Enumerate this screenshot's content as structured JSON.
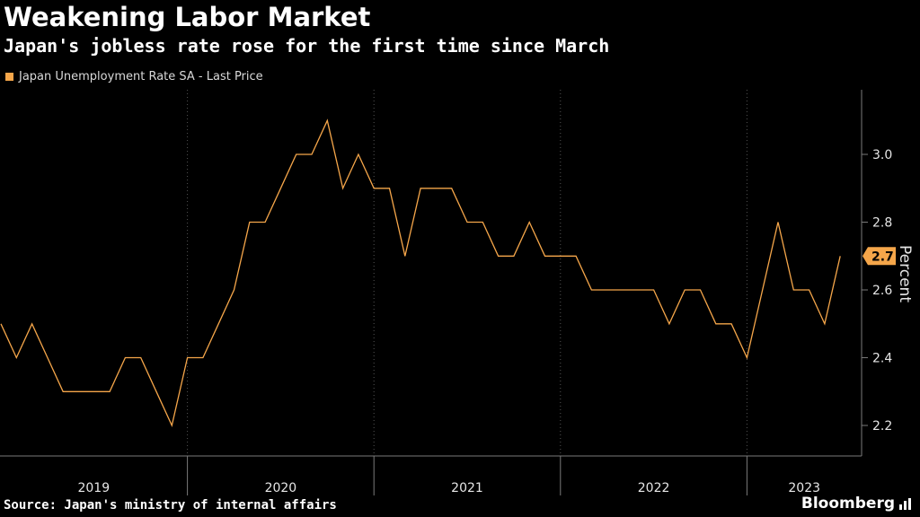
{
  "title": "Weakening Labor Market",
  "subtitle": "Japan's jobless rate rose for the first time since March",
  "legend": {
    "label": "Japan Unemployment Rate SA - Last Price",
    "color": "#f5a64a"
  },
  "source": "Source: Japan's ministry of internal affairs",
  "brand": "Bloomberg",
  "chart_data": {
    "type": "line",
    "title": "Weakening Labor Market",
    "subtitle": "Japan's jobless rate rose for the first time since March",
    "xlabel": "",
    "ylabel": "Percent",
    "ylim": [
      2.1,
      3.2
    ],
    "yticks": [
      2.2,
      2.4,
      2.6,
      2.8,
      3.0
    ],
    "ytick_labels": [
      "2.2",
      "2.4",
      "2.6",
      "2.8",
      "3.0"
    ],
    "x_categories": [
      "2019",
      "2020",
      "2021",
      "2022",
      "2023"
    ],
    "x_start": "2019-01",
    "x_end": "2023-11",
    "last_value_label": "2.7",
    "line_color": "#f5a64a",
    "grid": "vertical dotted year lines, horizontal solid ticks on right axis",
    "series": [
      {
        "name": "Japan Unemployment Rate SA - Last Price",
        "x": [
          "2019-01",
          "2019-02",
          "2019-03",
          "2019-04",
          "2019-05",
          "2019-06",
          "2019-07",
          "2019-08",
          "2019-09",
          "2019-10",
          "2019-11",
          "2019-12",
          "2020-01",
          "2020-02",
          "2020-03",
          "2020-04",
          "2020-05",
          "2020-06",
          "2020-07",
          "2020-08",
          "2020-09",
          "2020-10",
          "2020-11",
          "2020-12",
          "2021-01",
          "2021-02",
          "2021-03",
          "2021-04",
          "2021-05",
          "2021-06",
          "2021-07",
          "2021-08",
          "2021-09",
          "2021-10",
          "2021-11",
          "2021-12",
          "2022-01",
          "2022-02",
          "2022-03",
          "2022-04",
          "2022-05",
          "2022-06",
          "2022-07",
          "2022-08",
          "2022-09",
          "2022-10",
          "2022-11",
          "2022-12",
          "2023-01",
          "2023-02",
          "2023-03",
          "2023-04",
          "2023-05",
          "2023-06",
          "2023-07",
          "2023-08",
          "2023-09"
        ],
        "values": [
          2.5,
          2.4,
          2.5,
          2.4,
          2.3,
          2.3,
          2.3,
          2.3,
          2.4,
          2.4,
          2.3,
          2.2,
          2.4,
          2.4,
          2.5,
          2.6,
          2.8,
          2.8,
          2.9,
          3.0,
          3.0,
          3.1,
          2.9,
          3.0,
          2.9,
          2.9,
          2.7,
          2.9,
          2.9,
          2.9,
          2.8,
          2.8,
          2.7,
          2.7,
          2.8,
          2.7,
          2.7,
          2.7,
          2.6,
          2.6,
          2.6,
          2.6,
          2.6,
          2.5,
          2.6,
          2.6,
          2.5,
          2.5,
          2.4,
          2.6,
          2.8,
          2.6,
          2.6,
          2.5,
          2.7,
          null,
          null
        ]
      }
    ]
  }
}
